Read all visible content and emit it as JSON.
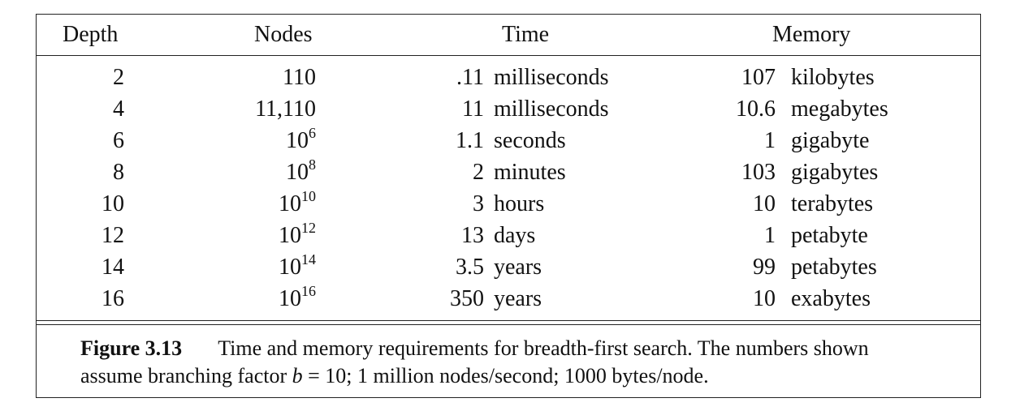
{
  "table": {
    "headers": {
      "depth": "Depth",
      "nodes": "Nodes",
      "time": "Time",
      "memory": "Memory"
    },
    "rows": [
      {
        "depth": "2",
        "nodes_base": "110",
        "nodes_exp": "",
        "time_value": ".11",
        "time_unit": "milliseconds",
        "memory_value": "107",
        "memory_unit": "kilobytes"
      },
      {
        "depth": "4",
        "nodes_base": "11,110",
        "nodes_exp": "",
        "time_value": "11",
        "time_unit": "milliseconds",
        "memory_value": "10.6",
        "memory_unit": "megabytes"
      },
      {
        "depth": "6",
        "nodes_base": "10",
        "nodes_exp": "6",
        "time_value": "1.1",
        "time_unit": "seconds",
        "memory_value": "1",
        "memory_unit": "gigabyte"
      },
      {
        "depth": "8",
        "nodes_base": "10",
        "nodes_exp": "8",
        "time_value": "2",
        "time_unit": "minutes",
        "memory_value": "103",
        "memory_unit": "gigabytes"
      },
      {
        "depth": "10",
        "nodes_base": "10",
        "nodes_exp": "10",
        "time_value": "3",
        "time_unit": "hours",
        "memory_value": "10",
        "memory_unit": "terabytes"
      },
      {
        "depth": "12",
        "nodes_base": "10",
        "nodes_exp": "12",
        "time_value": "13",
        "time_unit": "days",
        "memory_value": "1",
        "memory_unit": "petabyte"
      },
      {
        "depth": "14",
        "nodes_base": "10",
        "nodes_exp": "14",
        "time_value": "3.5",
        "time_unit": "years",
        "memory_value": "99",
        "memory_unit": "petabytes"
      },
      {
        "depth": "16",
        "nodes_base": "10",
        "nodes_exp": "16",
        "time_value": "350",
        "time_unit": "years",
        "memory_value": "10",
        "memory_unit": "exabytes"
      }
    ]
  },
  "caption": {
    "label": "Figure 3.13",
    "text_line1": "Time and memory requirements for breadth-first search. The numbers shown",
    "text_line2_prefix": "assume branching factor ",
    "math_var": "b",
    "text_line2_suffix": " = 10; 1 million nodes/second; 1000 bytes/node."
  }
}
